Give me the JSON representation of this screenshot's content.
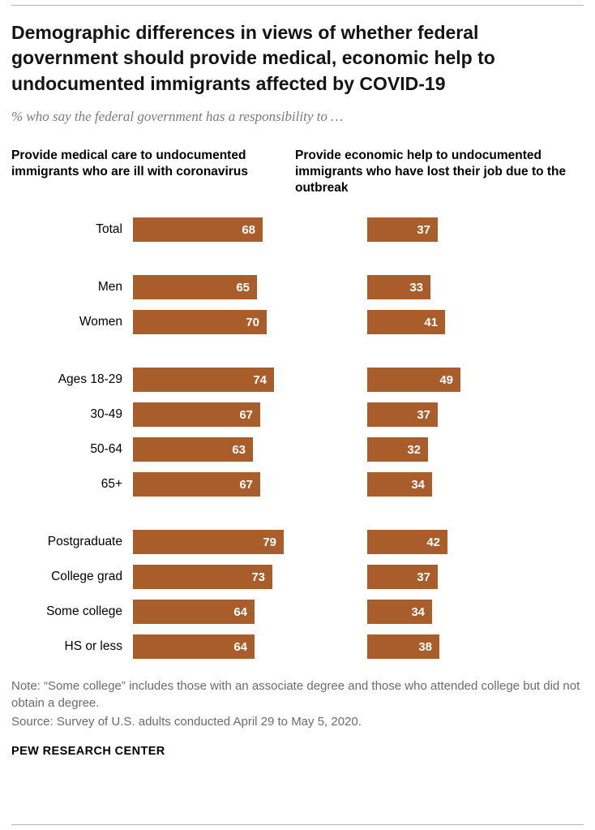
{
  "header": {
    "title": "Demographic differences in views of whether federal government should provide medical, economic help to undocumented immigrants affected by COVID-19",
    "subtitle": "% who say the federal government has a responsibility to …"
  },
  "chart_data": {
    "type": "bar",
    "bar_color": "#a85d2a",
    "xlim": [
      0,
      100
    ],
    "legend_position": "none",
    "grid": false,
    "categories": [
      "Total",
      "Men",
      "Women",
      "Ages 18-29",
      "30-49",
      "50-64",
      "65+",
      "Postgraduate",
      "College grad",
      "Some college",
      "HS or less"
    ],
    "group_starts": [
      1,
      3,
      7
    ],
    "series": [
      {
        "name": "Provide medical care to undocumented immigrants who are ill with coronavirus",
        "values": [
          68,
          65,
          70,
          74,
          67,
          63,
          67,
          79,
          73,
          64,
          64
        ]
      },
      {
        "name": "Provide economic help to undocumented immigrants who have lost their job due to the outbreak",
        "values": [
          37,
          33,
          41,
          49,
          37,
          32,
          34,
          42,
          37,
          34,
          38
        ]
      }
    ]
  },
  "footer": {
    "note": "Note: “Some college” includes those with an associate degree and those who attended college but did not obtain a degree.",
    "source": "Source: Survey of U.S. adults conducted April 29 to May 5, 2020.",
    "brand": "PEW RESEARCH CENTER"
  }
}
